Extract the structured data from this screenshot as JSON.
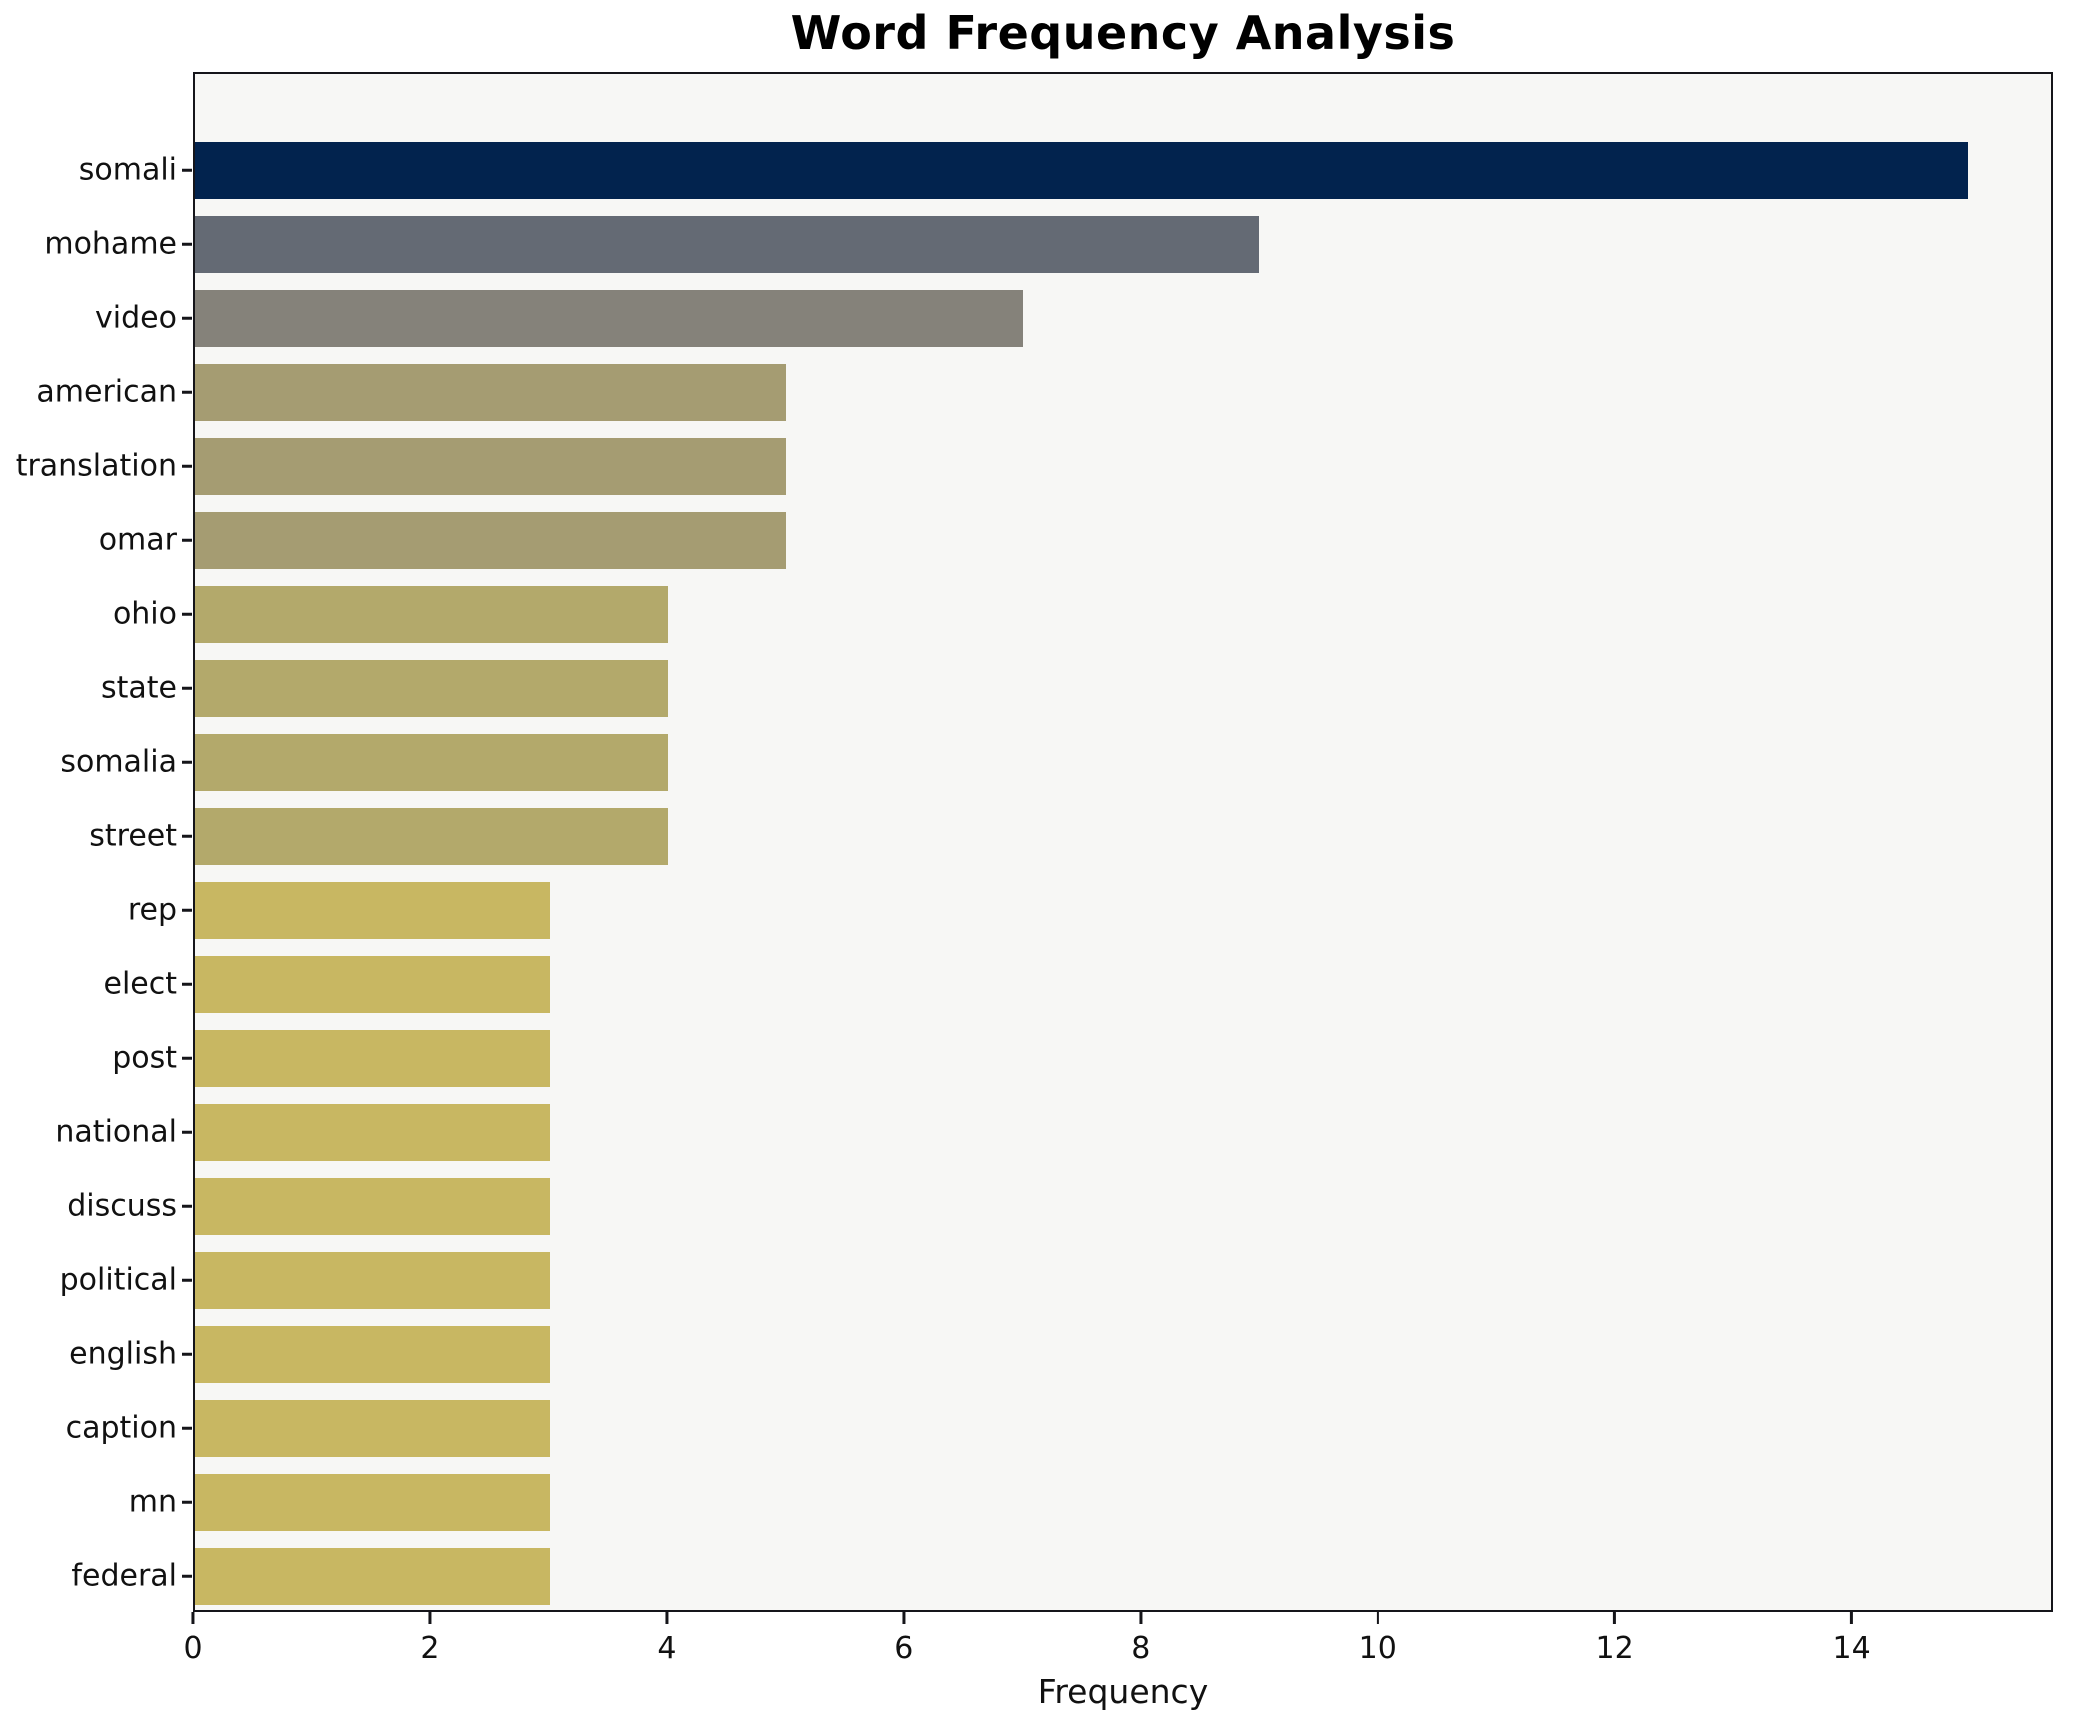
{
  "chart_data": {
    "type": "bar",
    "orientation": "horizontal",
    "title": "Word Frequency Analysis",
    "xlabel": "Frequency",
    "ylabel": "",
    "categories": [
      "somali",
      "mohame",
      "video",
      "american",
      "translation",
      "omar",
      "ohio",
      "state",
      "somalia",
      "street",
      "rep",
      "elect",
      "post",
      "national",
      "discuss",
      "political",
      "english",
      "caption",
      "mn",
      "federal"
    ],
    "values": [
      15,
      9,
      7,
      5,
      5,
      5,
      4,
      4,
      4,
      4,
      3,
      3,
      3,
      3,
      3,
      3,
      3,
      3,
      3,
      3
    ],
    "bar_colors": [
      "#02234e",
      "#646a74",
      "#85827a",
      "#a59c72",
      "#a59c72",
      "#a59c72",
      "#b3a96b",
      "#b3a96b",
      "#b3a96b",
      "#b3a96b",
      "#c8b762",
      "#c8b762",
      "#c8b762",
      "#c8b762",
      "#c8b762",
      "#c8b762",
      "#c8b762",
      "#c8b762",
      "#c8b762",
      "#c8b762"
    ],
    "xlim": [
      0,
      15.7
    ],
    "xticks": [
      0,
      2,
      4,
      6,
      8,
      10,
      12,
      14
    ],
    "grid": false,
    "legend": null,
    "plot_background": "#f7f7f5",
    "figure_background": "#ffffff",
    "spine_color": "#15151a"
  }
}
